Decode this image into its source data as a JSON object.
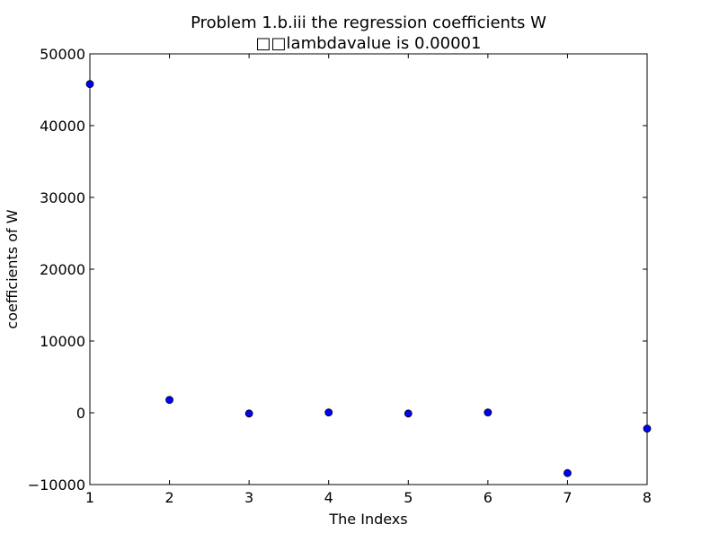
{
  "chart_data": {
    "type": "scatter",
    "title": "Problem 1.b.iii the regression coefficients W",
    "subtitle": "□□lambdavalue is 0.00001",
    "xlabel": "The Indexs",
    "ylabel": "coefficients of W",
    "xlim": [
      1,
      8
    ],
    "ylim": [
      -10000,
      50000
    ],
    "xticks": [
      1,
      2,
      3,
      4,
      5,
      6,
      7,
      8
    ],
    "yticks": [
      -10000,
      0,
      10000,
      20000,
      30000,
      40000,
      50000
    ],
    "grid": false,
    "legend": "none",
    "colors": {
      "marker_fill": "#0000ff",
      "marker_edge": "#000000",
      "axes": "#000000",
      "background": "#ffffff"
    },
    "series": [
      {
        "x": [
          1,
          2,
          3,
          4,
          5,
          6,
          7,
          8
        ],
        "y": [
          45800,
          1800,
          -100,
          50,
          -100,
          50,
          -8400,
          -2200
        ]
      }
    ]
  }
}
